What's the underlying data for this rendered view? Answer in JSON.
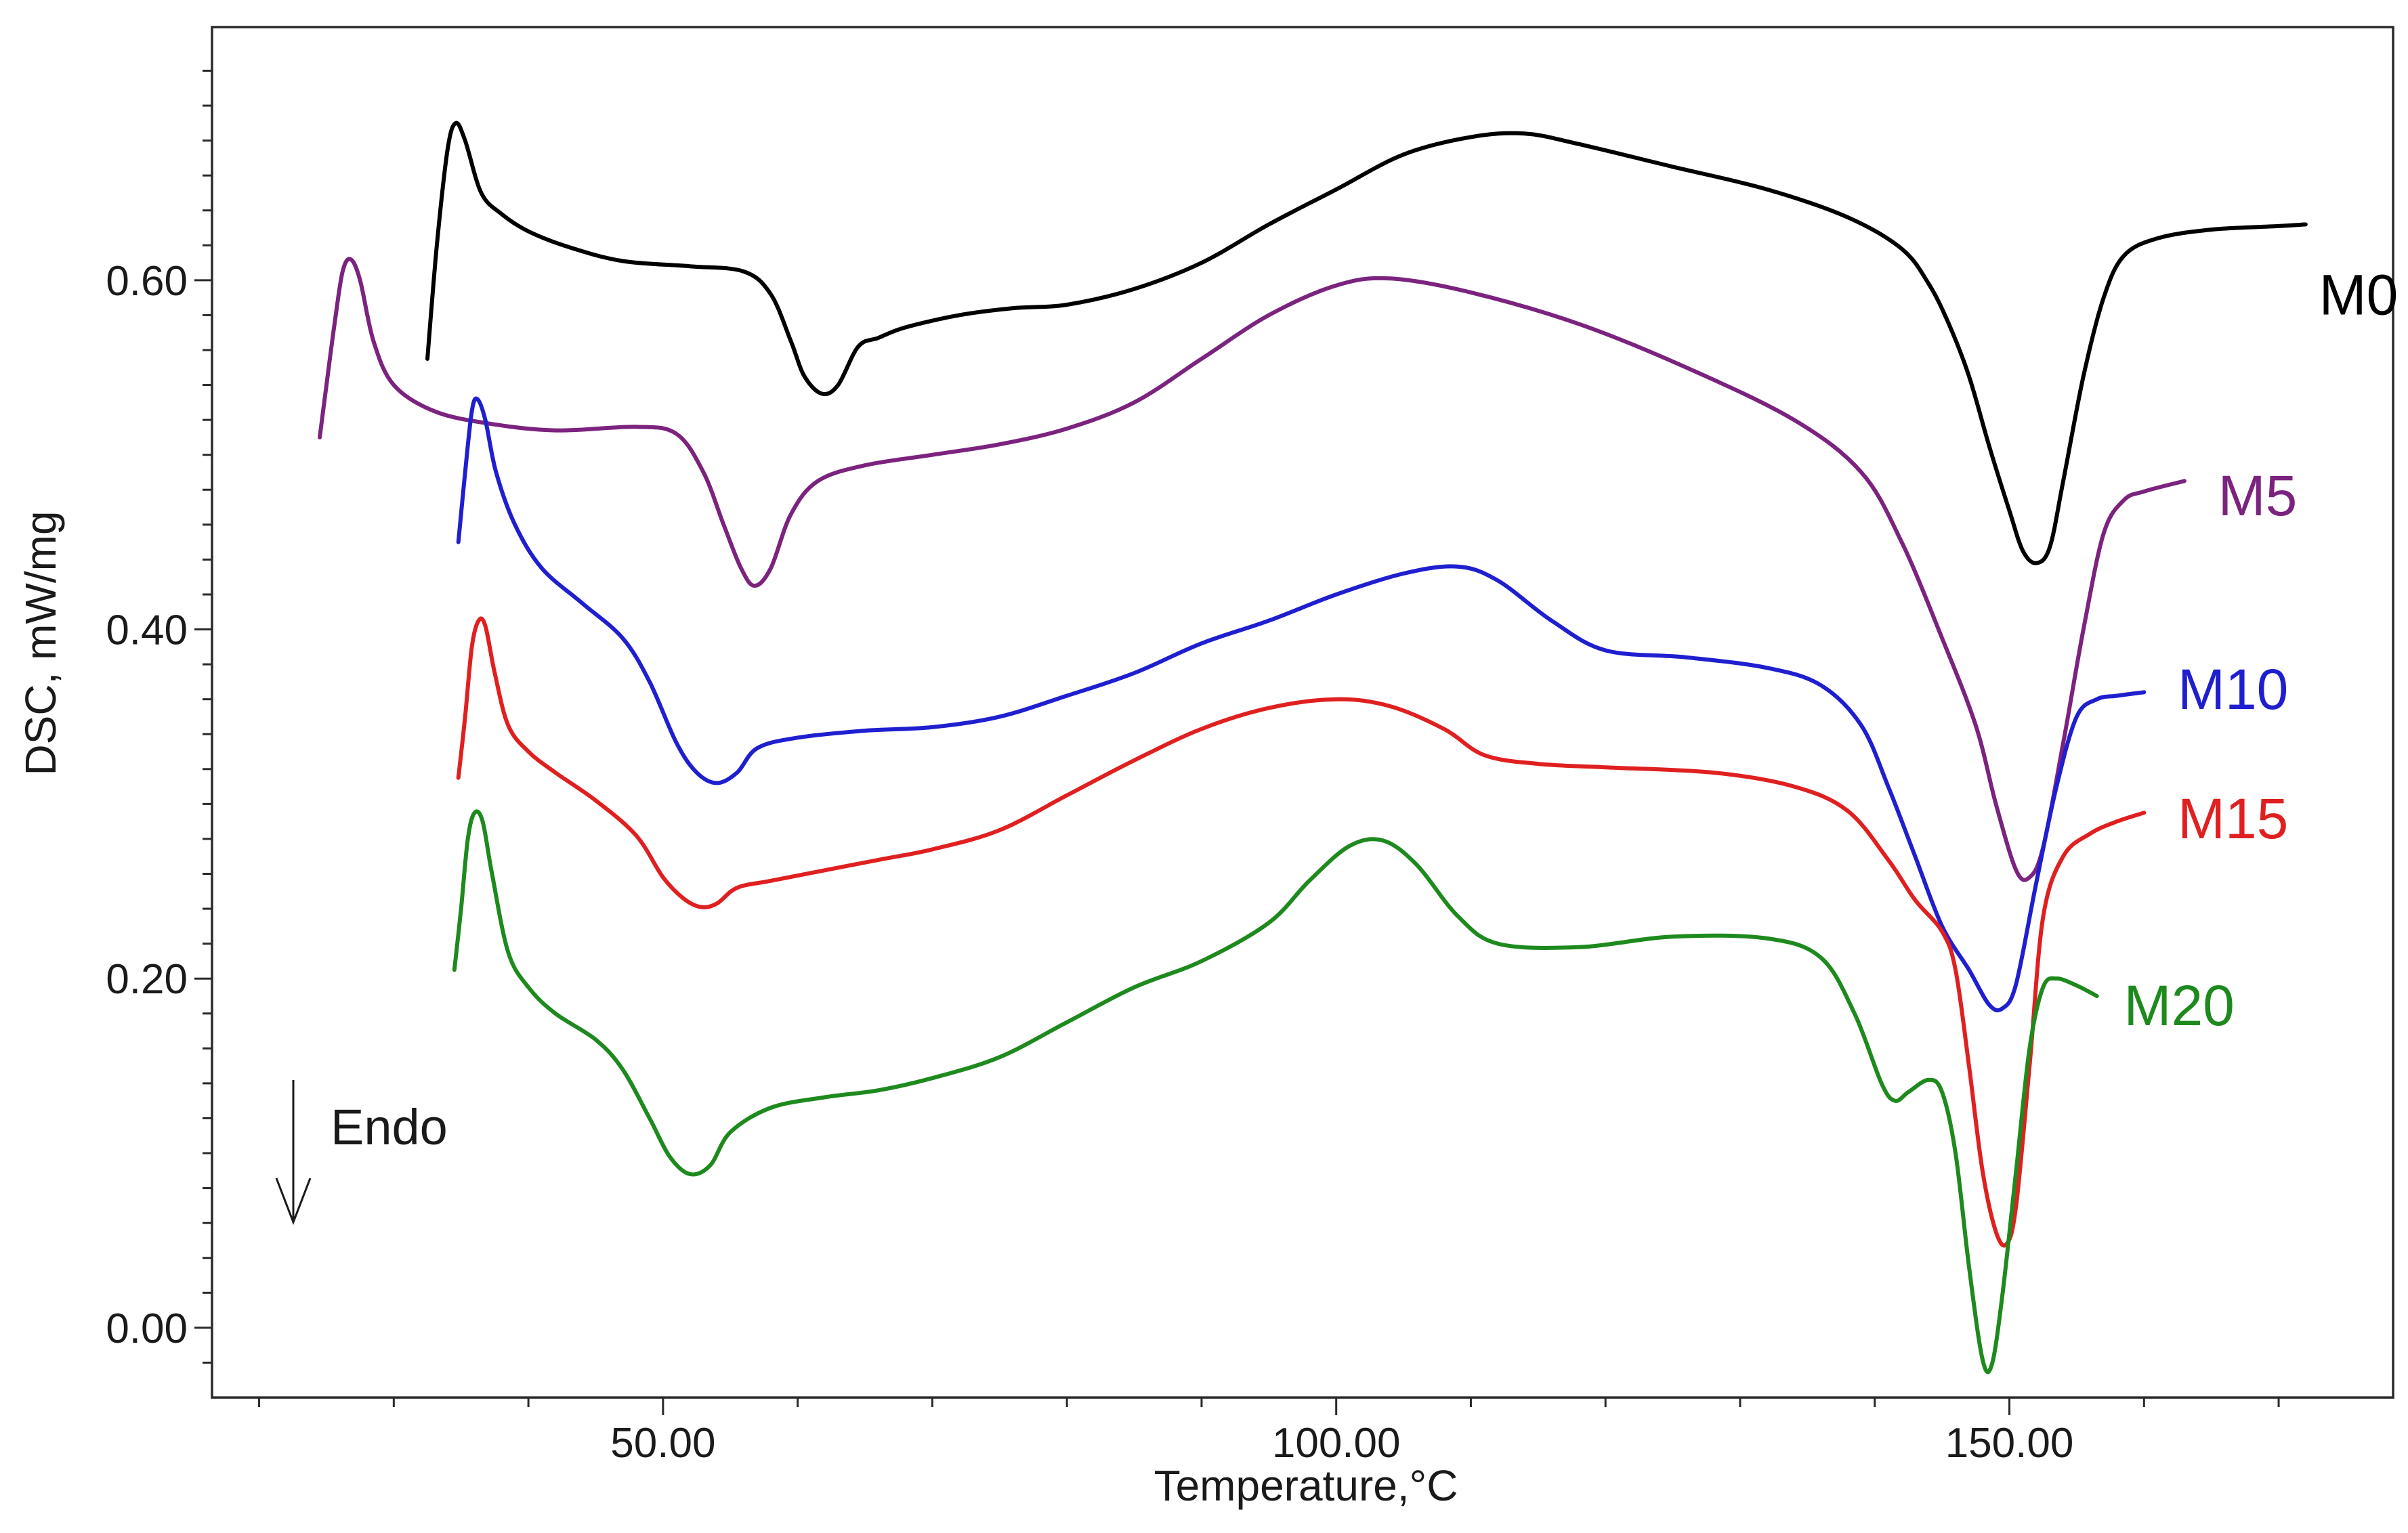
{
  "chart_data": {
    "type": "line",
    "title": "",
    "xlabel": "Temperature,°C",
    "ylabel": "DSC, mW/mg",
    "xlim": [
      16.5,
      178.5
    ],
    "ylim": [
      -0.04,
      0.745
    ],
    "x_ticks": [
      {
        "value": 50,
        "label": "50.00"
      },
      {
        "value": 100,
        "label": "100.00"
      },
      {
        "value": 150,
        "label": "150.00"
      }
    ],
    "x_minor_ticks": [
      20,
      30,
      40,
      60,
      70,
      80,
      90,
      110,
      120,
      130,
      140,
      160,
      170
    ],
    "y_ticks": [
      {
        "value": 0.0,
        "label": "0.00"
      },
      {
        "value": 0.2,
        "label": "0.20"
      },
      {
        "value": 0.4,
        "label": "0.40"
      },
      {
        "value": 0.6,
        "label": "0.60"
      }
    ],
    "y_minor_ticks": [
      -0.02,
      0.02,
      0.04,
      0.06,
      0.08,
      0.1,
      0.12,
      0.14,
      0.16,
      0.18,
      0.22,
      0.24,
      0.26,
      0.28,
      0.3,
      0.32,
      0.34,
      0.36,
      0.38,
      0.42,
      0.44,
      0.46,
      0.48,
      0.5,
      0.52,
      0.54,
      0.56,
      0.58,
      0.62,
      0.64,
      0.66,
      0.68,
      0.7,
      0.72
    ],
    "annotation": {
      "text": "Endo",
      "direction": "down"
    },
    "grid": false,
    "series": [
      {
        "name": "M0",
        "color": "#000000",
        "points": [
          [
            32.5,
            0.555
          ],
          [
            33.2,
            0.62
          ],
          [
            34.0,
            0.675
          ],
          [
            34.6,
            0.69
          ],
          [
            35.3,
            0.68
          ],
          [
            36.5,
            0.65
          ],
          [
            38,
            0.638
          ],
          [
            40,
            0.628
          ],
          [
            43,
            0.619
          ],
          [
            47,
            0.611
          ],
          [
            52,
            0.608
          ],
          [
            56,
            0.605
          ],
          [
            58,
            0.592
          ],
          [
            59.5,
            0.565
          ],
          [
            60.5,
            0.545
          ],
          [
            61.8,
            0.535
          ],
          [
            63,
            0.54
          ],
          [
            64.5,
            0.562
          ],
          [
            66,
            0.567
          ],
          [
            68,
            0.573
          ],
          [
            72,
            0.58
          ],
          [
            76,
            0.584
          ],
          [
            80,
            0.586
          ],
          [
            85,
            0.595
          ],
          [
            90,
            0.61
          ],
          [
            95,
            0.632
          ],
          [
            100,
            0.652
          ],
          [
            105,
            0.672
          ],
          [
            110,
            0.682
          ],
          [
            114,
            0.684
          ],
          [
            118,
            0.678
          ],
          [
            125,
            0.665
          ],
          [
            132,
            0.652
          ],
          [
            138,
            0.636
          ],
          [
            142,
            0.618
          ],
          [
            144,
            0.598
          ],
          [
            145.5,
            0.575
          ],
          [
            147,
            0.545
          ],
          [
            148.5,
            0.505
          ],
          [
            150,
            0.468
          ],
          [
            151,
            0.445
          ],
          [
            152,
            0.438
          ],
          [
            153,
            0.447
          ],
          [
            154,
            0.485
          ],
          [
            155.5,
            0.545
          ],
          [
            157,
            0.59
          ],
          [
            158.5,
            0.614
          ],
          [
            161,
            0.624
          ],
          [
            165,
            0.629
          ],
          [
            170,
            0.631
          ],
          [
            172,
            0.632
          ]
        ]
      },
      {
        "name": "M5",
        "color": "#7B237F",
        "points": [
          [
            24.5,
            0.51
          ],
          [
            25.0,
            0.54
          ],
          [
            25.6,
            0.575
          ],
          [
            26.2,
            0.605
          ],
          [
            26.8,
            0.612
          ],
          [
            27.5,
            0.6
          ],
          [
            28.5,
            0.565
          ],
          [
            30,
            0.54
          ],
          [
            33,
            0.525
          ],
          [
            37,
            0.518
          ],
          [
            42,
            0.514
          ],
          [
            48,
            0.516
          ],
          [
            51,
            0.512
          ],
          [
            53,
            0.49
          ],
          [
            54.5,
            0.46
          ],
          [
            55.8,
            0.435
          ],
          [
            56.8,
            0.425
          ],
          [
            58,
            0.435
          ],
          [
            59.5,
            0.466
          ],
          [
            61.5,
            0.485
          ],
          [
            65,
            0.494
          ],
          [
            70,
            0.5
          ],
          [
            75,
            0.506
          ],
          [
            80,
            0.515
          ],
          [
            85,
            0.53
          ],
          [
            90,
            0.555
          ],
          [
            95,
            0.58
          ],
          [
            100,
            0.597
          ],
          [
            104,
            0.601
          ],
          [
            110,
            0.593
          ],
          [
            118,
            0.575
          ],
          [
            126,
            0.55
          ],
          [
            134,
            0.52
          ],
          [
            139,
            0.49
          ],
          [
            142,
            0.45
          ],
          [
            145,
            0.395
          ],
          [
            147.5,
            0.345
          ],
          [
            149,
            0.3
          ],
          [
            150.5,
            0.262
          ],
          [
            151.5,
            0.258
          ],
          [
            152.5,
            0.275
          ],
          [
            154,
            0.335
          ],
          [
            155.5,
            0.4
          ],
          [
            157,
            0.455
          ],
          [
            158.5,
            0.474
          ],
          [
            160,
            0.479
          ],
          [
            163,
            0.485
          ]
        ]
      },
      {
        "name": "M10",
        "color": "#1F1FD0",
        "points": [
          [
            34.8,
            0.45
          ],
          [
            35.3,
            0.49
          ],
          [
            35.8,
            0.525
          ],
          [
            36.2,
            0.532
          ],
          [
            36.8,
            0.52
          ],
          [
            37.6,
            0.49
          ],
          [
            39,
            0.46
          ],
          [
            41,
            0.435
          ],
          [
            44,
            0.415
          ],
          [
            47,
            0.395
          ],
          [
            49,
            0.37
          ],
          [
            51,
            0.335
          ],
          [
            52.5,
            0.318
          ],
          [
            54,
            0.312
          ],
          [
            55.5,
            0.318
          ],
          [
            57,
            0.332
          ],
          [
            60,
            0.338
          ],
          [
            65,
            0.342
          ],
          [
            70,
            0.344
          ],
          [
            75,
            0.35
          ],
          [
            80,
            0.362
          ],
          [
            85,
            0.375
          ],
          [
            90,
            0.392
          ],
          [
            95,
            0.405
          ],
          [
            100,
            0.42
          ],
          [
            105,
            0.432
          ],
          [
            109,
            0.436
          ],
          [
            112,
            0.428
          ],
          [
            116,
            0.405
          ],
          [
            120,
            0.388
          ],
          [
            126,
            0.384
          ],
          [
            132,
            0.378
          ],
          [
            136,
            0.368
          ],
          [
            139,
            0.345
          ],
          [
            141,
            0.31
          ],
          [
            143,
            0.27
          ],
          [
            145,
            0.23
          ],
          [
            147,
            0.205
          ],
          [
            148.5,
            0.185
          ],
          [
            149.5,
            0.183
          ],
          [
            150.5,
            0.197
          ],
          [
            152,
            0.255
          ],
          [
            153.5,
            0.31
          ],
          [
            155,
            0.35
          ],
          [
            156.5,
            0.36
          ],
          [
            158,
            0.362
          ],
          [
            160,
            0.364
          ]
        ]
      },
      {
        "name": "M15",
        "color": "#E02020",
        "points": [
          [
            34.8,
            0.315
          ],
          [
            35.3,
            0.35
          ],
          [
            35.8,
            0.39
          ],
          [
            36.3,
            0.405
          ],
          [
            36.8,
            0.402
          ],
          [
            37.5,
            0.375
          ],
          [
            38.5,
            0.345
          ],
          [
            40,
            0.33
          ],
          [
            42,
            0.318
          ],
          [
            45,
            0.302
          ],
          [
            48,
            0.282
          ],
          [
            50,
            0.258
          ],
          [
            51.5,
            0.246
          ],
          [
            52.8,
            0.241
          ],
          [
            54,
            0.243
          ],
          [
            55.5,
            0.252
          ],
          [
            58,
            0.256
          ],
          [
            62,
            0.262
          ],
          [
            66,
            0.268
          ],
          [
            70,
            0.274
          ],
          [
            75,
            0.285
          ],
          [
            80,
            0.305
          ],
          [
            85,
            0.325
          ],
          [
            90,
            0.343
          ],
          [
            95,
            0.355
          ],
          [
            100,
            0.36
          ],
          [
            104,
            0.356
          ],
          [
            108,
            0.343
          ],
          [
            111,
            0.328
          ],
          [
            115,
            0.323
          ],
          [
            120,
            0.321
          ],
          [
            128,
            0.318
          ],
          [
            134,
            0.31
          ],
          [
            138,
            0.296
          ],
          [
            141,
            0.268
          ],
          [
            143,
            0.245
          ],
          [
            145,
            0.227
          ],
          [
            146,
            0.205
          ],
          [
            147,
            0.15
          ],
          [
            148,
            0.09
          ],
          [
            149,
            0.055
          ],
          [
            149.8,
            0.048
          ],
          [
            150.5,
            0.07
          ],
          [
            151.5,
            0.15
          ],
          [
            152.5,
            0.235
          ],
          [
            154,
            0.27
          ],
          [
            156,
            0.283
          ],
          [
            158,
            0.29
          ],
          [
            160,
            0.295
          ]
        ]
      },
      {
        "name": "M20",
        "color": "#1E8A1E",
        "points": [
          [
            34.5,
            0.205
          ],
          [
            35,
            0.24
          ],
          [
            35.5,
            0.28
          ],
          [
            36,
            0.295
          ],
          [
            36.6,
            0.29
          ],
          [
            37.3,
            0.26
          ],
          [
            38.5,
            0.215
          ],
          [
            40,
            0.195
          ],
          [
            42,
            0.18
          ],
          [
            45,
            0.165
          ],
          [
            47,
            0.148
          ],
          [
            49,
            0.12
          ],
          [
            50.5,
            0.098
          ],
          [
            52,
            0.088
          ],
          [
            53.5,
            0.093
          ],
          [
            55,
            0.112
          ],
          [
            58,
            0.126
          ],
          [
            62,
            0.132
          ],
          [
            66,
            0.136
          ],
          [
            70,
            0.143
          ],
          [
            75,
            0.155
          ],
          [
            80,
            0.175
          ],
          [
            85,
            0.195
          ],
          [
            90,
            0.21
          ],
          [
            95,
            0.232
          ],
          [
            98,
            0.256
          ],
          [
            101,
            0.276
          ],
          [
            103.5,
            0.279
          ],
          [
            106,
            0.265
          ],
          [
            109,
            0.236
          ],
          [
            112,
            0.22
          ],
          [
            118,
            0.218
          ],
          [
            125,
            0.224
          ],
          [
            132,
            0.223
          ],
          [
            136,
            0.212
          ],
          [
            138.5,
            0.18
          ],
          [
            140.5,
            0.14
          ],
          [
            141.5,
            0.13
          ],
          [
            142.5,
            0.135
          ],
          [
            144,
            0.142
          ],
          [
            145,
            0.135
          ],
          [
            146,
            0.1
          ],
          [
            147,
            0.035
          ],
          [
            148,
            -0.018
          ],
          [
            148.7,
            -0.021
          ],
          [
            149.5,
            0.02
          ],
          [
            150.5,
            0.09
          ],
          [
            151.5,
            0.16
          ],
          [
            152.5,
            0.195
          ],
          [
            153.5,
            0.2
          ],
          [
            155,
            0.196
          ],
          [
            156.5,
            0.19
          ]
        ]
      }
    ],
    "series_labels": [
      {
        "series": "M0",
        "text": "M0",
        "x": 173,
        "y": 0.592
      },
      {
        "series": "M5",
        "text": "M5",
        "x": 165.5,
        "y": 0.477
      },
      {
        "series": "M10",
        "text": "M10",
        "x": 162.5,
        "y": 0.366
      },
      {
        "series": "M15",
        "text": "M15",
        "x": 162.5,
        "y": 0.292
      },
      {
        "series": "M20",
        "text": "M20",
        "x": 158.5,
        "y": 0.185
      }
    ]
  }
}
